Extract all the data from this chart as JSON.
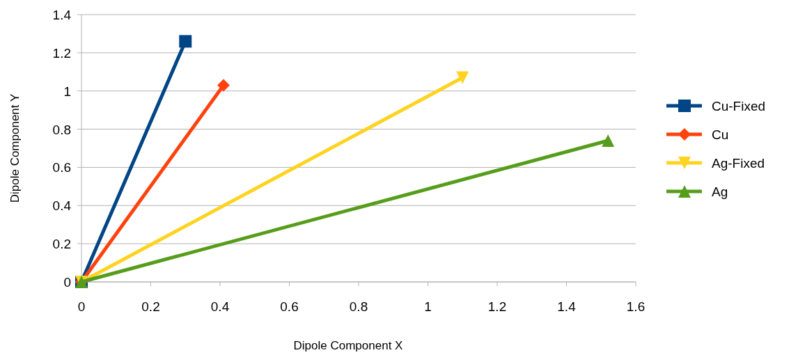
{
  "chart_data": {
    "type": "line",
    "xlabel": "Dipole Component X",
    "ylabel": "Dipole Component Y",
    "xlim": [
      0,
      1.6
    ],
    "xticks": [
      0,
      0.2,
      0.4,
      0.6,
      0.8,
      1,
      1.2,
      1.4,
      1.6
    ],
    "ylim": [
      0,
      1.4
    ],
    "yticks": [
      0,
      0.2,
      0.4,
      0.6,
      0.8,
      1,
      1.2,
      1.4
    ],
    "grid": "y",
    "legend": "right",
    "series": [
      {
        "name": "Cu-Fixed",
        "color": "#004586",
        "marker": "square",
        "x": [
          0,
          0.3
        ],
        "values": [
          0,
          1.26
        ]
      },
      {
        "name": "Cu",
        "color": "#ff420e",
        "marker": "diamond",
        "x": [
          0,
          0.41
        ],
        "values": [
          0,
          1.03
        ]
      },
      {
        "name": "Ag-Fixed",
        "color": "#ffd320",
        "marker": "triangle-down",
        "x": [
          0,
          1.1
        ],
        "values": [
          0,
          1.07
        ]
      },
      {
        "name": "Ag",
        "color": "#579d1c",
        "marker": "triangle",
        "x": [
          0,
          1.52
        ],
        "values": [
          0,
          0.74
        ]
      }
    ]
  }
}
